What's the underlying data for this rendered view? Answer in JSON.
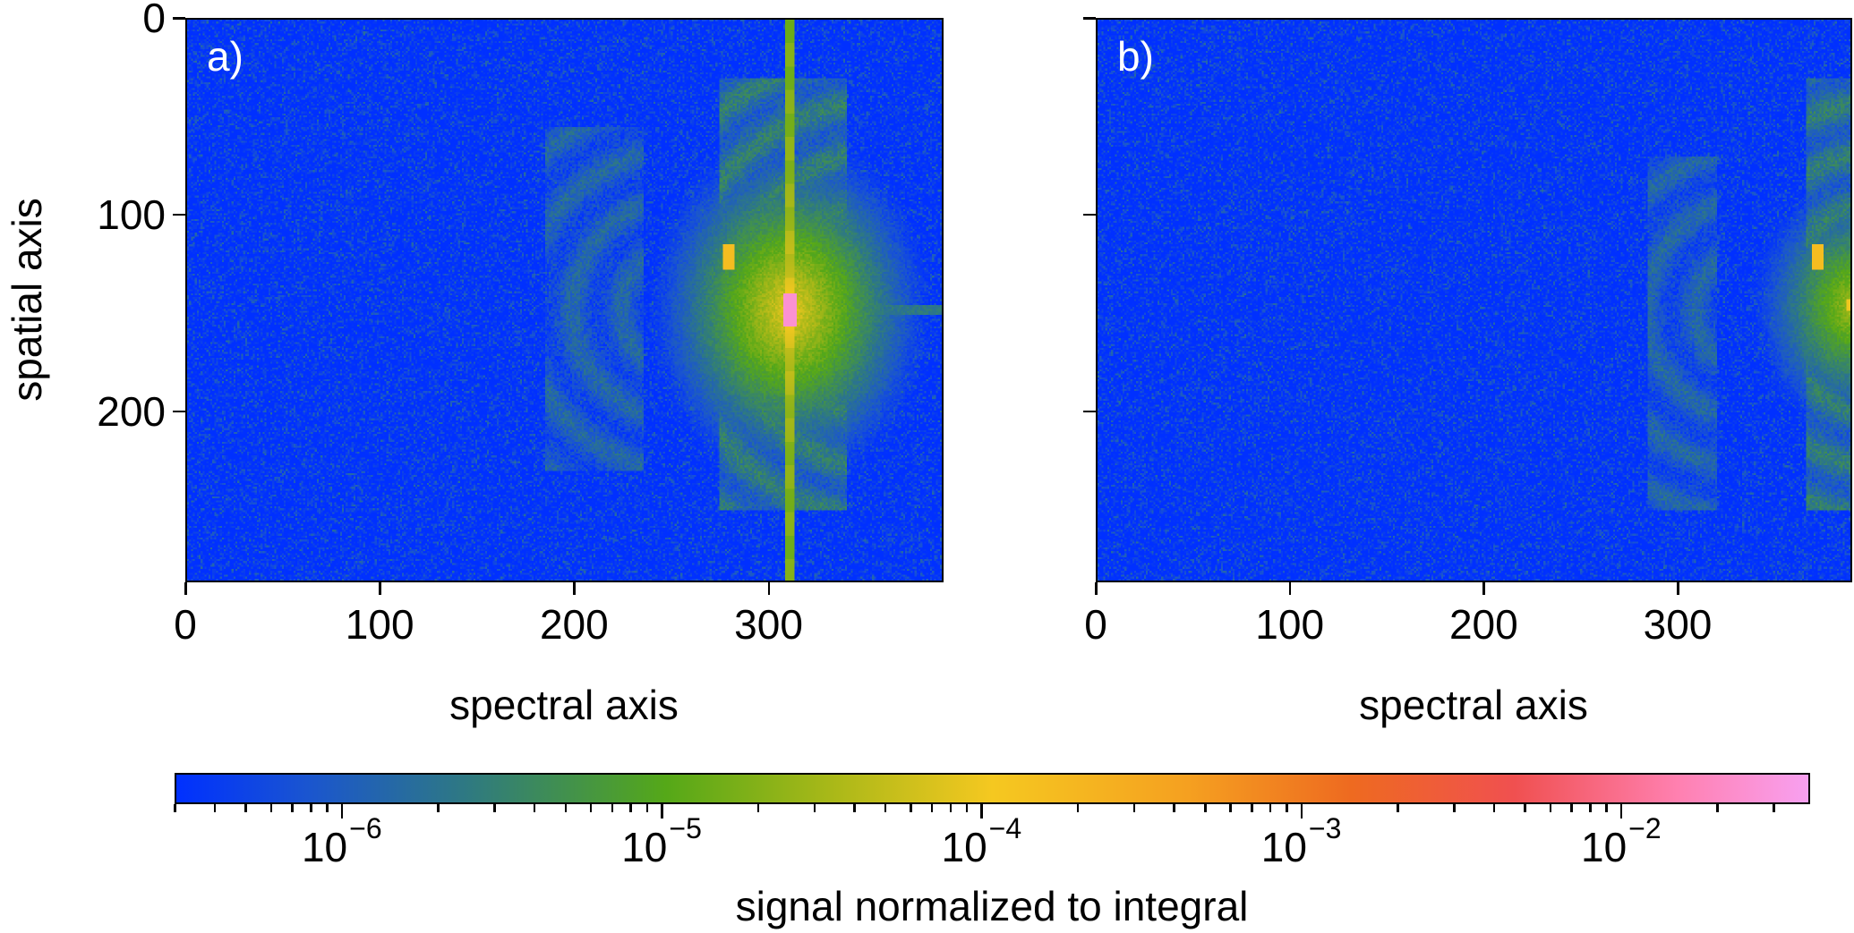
{
  "chart_data": {
    "type": "heatmap",
    "colorbar": {
      "label": "signal normalized to integral",
      "scale": "log",
      "range": [
        3e-07,
        0.039
      ],
      "major_ticks": [
        {
          "value": 1e-06,
          "base": "10",
          "exp": "−6"
        },
        {
          "value": 1e-05,
          "base": "10",
          "exp": "−5"
        },
        {
          "value": 0.0001,
          "base": "10",
          "exp": "−4"
        },
        {
          "value": 0.001,
          "base": "10",
          "exp": "−3"
        },
        {
          "value": 0.01,
          "base": "10",
          "exp": "−2"
        }
      ],
      "colormap": [
        [
          0.0,
          "#0030ff"
        ],
        [
          0.08,
          "#1a55d0"
        ],
        [
          0.18,
          "#2f7a80"
        ],
        [
          0.3,
          "#55a818"
        ],
        [
          0.4,
          "#a8b818"
        ],
        [
          0.5,
          "#f5c820"
        ],
        [
          0.62,
          "#f5a020"
        ],
        [
          0.72,
          "#ee6a20"
        ],
        [
          0.82,
          "#f05050"
        ],
        [
          0.92,
          "#ff80b0"
        ],
        [
          1.0,
          "#f8a0f0"
        ]
      ]
    },
    "panels": [
      {
        "id": "a",
        "label": "a)",
        "xlabel": "spectral axis",
        "ylabel": "spatial axis",
        "xlim": [
          0,
          390
        ],
        "ylim": [
          287,
          0
        ],
        "xticks": [
          0,
          100,
          200,
          300
        ],
        "xticklabels": [
          "0",
          "100",
          "200",
          "300"
        ],
        "yticks": [
          0,
          100,
          200
        ],
        "yticklabels": [
          "0",
          "100",
          "200"
        ],
        "background_log10": -6.4,
        "features": [
          {
            "kind": "band",
            "x": [
              185,
              235
            ],
            "y": [
              55,
              230
            ],
            "log10": -6.0
          },
          {
            "kind": "band",
            "x": [
              275,
              340
            ],
            "y": [
              30,
              250
            ],
            "log10": -5.7
          },
          {
            "kind": "vline",
            "x": [
              309,
              313
            ],
            "y": [
              0,
              287
            ],
            "log10": -4.8
          },
          {
            "kind": "glow",
            "cx": 311,
            "cy": 148,
            "r": 32,
            "log10": -4.2
          },
          {
            "kind": "spot",
            "x": [
              308,
              314
            ],
            "y": [
              140,
              156
            ],
            "log10": -1.6
          },
          {
            "kind": "spot",
            "x": [
              277,
              282
            ],
            "y": [
              115,
              127
            ],
            "log10": -3.8
          },
          {
            "kind": "hline",
            "x": [
              313,
              390
            ],
            "y": [
              146,
              150
            ],
            "log10": -5.8
          }
        ]
      },
      {
        "id": "b",
        "label": "b)",
        "xlabel": "spectral axis",
        "xlim": [
          0,
          390
        ],
        "ylim": [
          287,
          0
        ],
        "xticks": [
          0,
          100,
          200,
          300
        ],
        "xticklabels": [
          "0",
          "100",
          "200",
          "300"
        ],
        "yticks": [
          0,
          100,
          200
        ],
        "yticklabels": [],
        "background_log10": -6.4,
        "features": [
          {
            "kind": "band",
            "x": [
              285,
              320
            ],
            "y": [
              70,
              250
            ],
            "log10": -6.0
          },
          {
            "kind": "band",
            "x": [
              367,
              390
            ],
            "y": [
              30,
              250
            ],
            "log10": -5.7
          },
          {
            "kind": "glow",
            "cx": 392,
            "cy": 146,
            "r": 28,
            "log10": -4.6
          },
          {
            "kind": "spot",
            "x": [
              370,
              375
            ],
            "y": [
              115,
              127
            ],
            "log10": -3.8
          },
          {
            "kind": "spot",
            "x": [
              388,
              390
            ],
            "y": [
              143,
              148
            ],
            "log10": -4.0
          }
        ]
      }
    ]
  }
}
